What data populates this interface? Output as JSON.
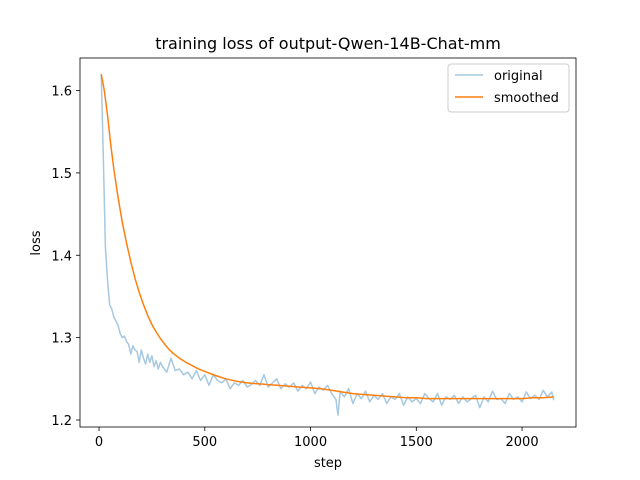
{
  "chart_data": {
    "type": "line",
    "title": "training loss of output-Qwen-14B-Chat-mm",
    "xlabel": "step",
    "ylabel": "loss",
    "xlim": [
      -90,
      2255
    ],
    "ylim": [
      1.1915,
      1.6395
    ],
    "x_ticks": [
      0,
      500,
      1000,
      1500,
      2000
    ],
    "y_ticks": [
      1.2,
      1.3,
      1.4,
      1.5,
      1.6
    ],
    "x_tick_labels": [
      "0",
      "500",
      "1000",
      "1500",
      "2000"
    ],
    "y_tick_labels": [
      "1.2",
      "1.3",
      "1.4",
      "1.5",
      "1.6"
    ],
    "grid": false,
    "legend_position": "top-right",
    "colors": {
      "original": "#a6c8e0",
      "smoothed": "#ff7f0e",
      "axes": "#000000"
    },
    "series": [
      {
        "name": "original",
        "x": [
          10,
          20,
          30,
          40,
          50,
          60,
          70,
          80,
          90,
          100,
          110,
          120,
          130,
          140,
          150,
          160,
          170,
          180,
          190,
          200,
          210,
          220,
          230,
          240,
          250,
          260,
          270,
          280,
          290,
          300,
          320,
          340,
          360,
          380,
          400,
          420,
          440,
          460,
          480,
          500,
          520,
          540,
          560,
          580,
          600,
          620,
          640,
          660,
          680,
          700,
          720,
          740,
          760,
          780,
          800,
          820,
          840,
          860,
          880,
          900,
          920,
          940,
          960,
          980,
          1000,
          1020,
          1040,
          1060,
          1080,
          1100,
          1120,
          1130,
          1140,
          1160,
          1180,
          1200,
          1220,
          1240,
          1260,
          1280,
          1300,
          1320,
          1340,
          1360,
          1380,
          1400,
          1420,
          1440,
          1460,
          1480,
          1500,
          1520,
          1540,
          1560,
          1580,
          1600,
          1620,
          1640,
          1660,
          1680,
          1700,
          1720,
          1740,
          1760,
          1780,
          1800,
          1820,
          1840,
          1860,
          1880,
          1900,
          1920,
          1940,
          1960,
          1980,
          2000,
          2020,
          2040,
          2060,
          2080,
          2100,
          2120,
          2140,
          2150
        ],
        "values": [
          1.62,
          1.52,
          1.41,
          1.37,
          1.34,
          1.335,
          1.325,
          1.32,
          1.315,
          1.305,
          1.3,
          1.302,
          1.295,
          1.292,
          1.28,
          1.29,
          1.285,
          1.283,
          1.27,
          1.285,
          1.275,
          1.268,
          1.28,
          1.27,
          1.278,
          1.265,
          1.272,
          1.262,
          1.27,
          1.265,
          1.258,
          1.275,
          1.26,
          1.262,
          1.255,
          1.258,
          1.25,
          1.26,
          1.248,
          1.255,
          1.242,
          1.255,
          1.248,
          1.245,
          1.25,
          1.238,
          1.245,
          1.242,
          1.248,
          1.24,
          1.243,
          1.248,
          1.242,
          1.255,
          1.24,
          1.245,
          1.25,
          1.238,
          1.244,
          1.24,
          1.245,
          1.235,
          1.242,
          1.238,
          1.246,
          1.232,
          1.24,
          1.236,
          1.242,
          1.232,
          1.225,
          1.206,
          1.235,
          1.228,
          1.238,
          1.22,
          1.232,
          1.226,
          1.235,
          1.222,
          1.23,
          1.225,
          1.232,
          1.22,
          1.228,
          1.225,
          1.232,
          1.218,
          1.228,
          1.222,
          1.226,
          1.22,
          1.232,
          1.226,
          1.222,
          1.232,
          1.218,
          1.228,
          1.225,
          1.23,
          1.22,
          1.228,
          1.222,
          1.226,
          1.23,
          1.215,
          1.228,
          1.222,
          1.235,
          1.225,
          1.226,
          1.22,
          1.232,
          1.225,
          1.228,
          1.222,
          1.234,
          1.226,
          1.23,
          1.225,
          1.236,
          1.228,
          1.234,
          1.224
        ]
      },
      {
        "name": "smoothed",
        "x": [
          10,
          25,
          40,
          55,
          70,
          90,
          110,
          130,
          150,
          170,
          190,
          210,
          230,
          250,
          270,
          290,
          310,
          330,
          350,
          380,
          410,
          440,
          470,
          500,
          550,
          600,
          650,
          700,
          750,
          800,
          850,
          900,
          950,
          1000,
          1050,
          1100,
          1150,
          1200,
          1250,
          1300,
          1350,
          1400,
          1450,
          1500,
          1550,
          1600,
          1650,
          1700,
          1750,
          1800,
          1850,
          1900,
          1950,
          2000,
          2050,
          2100,
          2150
        ],
        "values": [
          1.62,
          1.6,
          1.57,
          1.535,
          1.505,
          1.47,
          1.44,
          1.415,
          1.392,
          1.372,
          1.355,
          1.34,
          1.327,
          1.316,
          1.307,
          1.299,
          1.292,
          1.286,
          1.281,
          1.275,
          1.27,
          1.266,
          1.262,
          1.259,
          1.254,
          1.25,
          1.247,
          1.245,
          1.244,
          1.243,
          1.242,
          1.241,
          1.24,
          1.239,
          1.238,
          1.236,
          1.234,
          1.232,
          1.231,
          1.23,
          1.229,
          1.228,
          1.227,
          1.227,
          1.226,
          1.226,
          1.226,
          1.226,
          1.226,
          1.226,
          1.226,
          1.226,
          1.226,
          1.226,
          1.227,
          1.227,
          1.228
        ]
      }
    ]
  }
}
